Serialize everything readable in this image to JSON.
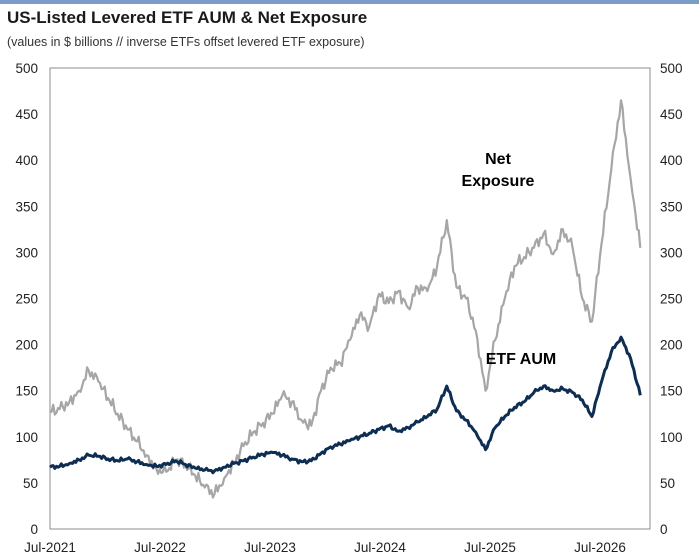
{
  "header": {
    "title": "US-Listed Levered ETF AUM & Net Exposure",
    "subtitle": "(values in $ billions // inverse ETFs offset levered ETF exposure)"
  },
  "chart_data": {
    "type": "line",
    "title": "US-Listed Levered ETF AUM & Net Exposure",
    "subtitle": "(values in $ billions // inverse ETFs offset levered ETF exposure)",
    "xlabel": "",
    "ylabel": "",
    "x_tick_labels": [
      "Jul-2021",
      "Jul-2022",
      "Jul-2023",
      "Jul-2024",
      "Jul-2025",
      "Jul-2026"
    ],
    "y_ticks": [
      0,
      50,
      100,
      150,
      200,
      250,
      300,
      350,
      400,
      450,
      500
    ],
    "ylim": [
      0,
      500
    ],
    "secondary_y_ticks": [
      0,
      50,
      100,
      150,
      200,
      250,
      300,
      350,
      400,
      450,
      500
    ],
    "grid": false,
    "annotations": [
      {
        "text": "Net",
        "series": "Net Exposure",
        "color": "#a6a6a6"
      },
      {
        "text": "Exposure",
        "series": "Net Exposure",
        "color": "#a6a6a6"
      },
      {
        "text": "ETF AUM",
        "series": "ETF AUM",
        "color": "#0e2d52"
      }
    ],
    "series": [
      {
        "name": "Net Exposure",
        "color": "#a6a6a6",
        "points": [
          [
            "2021-07",
            127
          ],
          [
            "2021-08",
            130
          ],
          [
            "2021-09",
            138
          ],
          [
            "2021-10",
            150
          ],
          [
            "2021-11",
            172
          ],
          [
            "2021-12",
            160
          ],
          [
            "2022-01",
            142
          ],
          [
            "2022-02",
            125
          ],
          [
            "2022-03",
            108
          ],
          [
            "2022-04",
            95
          ],
          [
            "2022-05",
            80
          ],
          [
            "2022-06",
            65
          ],
          [
            "2022-07",
            62
          ],
          [
            "2022-08",
            75
          ],
          [
            "2022-09",
            70
          ],
          [
            "2022-10",
            58
          ],
          [
            "2022-11",
            45
          ],
          [
            "2022-12",
            38
          ],
          [
            "2023-01",
            55
          ],
          [
            "2023-02",
            72
          ],
          [
            "2023-03",
            90
          ],
          [
            "2023-04",
            105
          ],
          [
            "2023-05",
            115
          ],
          [
            "2023-06",
            125
          ],
          [
            "2023-07",
            145
          ],
          [
            "2023-08",
            138
          ],
          [
            "2023-09",
            118
          ],
          [
            "2023-10",
            112
          ],
          [
            "2023-11",
            150
          ],
          [
            "2023-12",
            175
          ],
          [
            "2024-01",
            180
          ],
          [
            "2024-02",
            205
          ],
          [
            "2024-03",
            232
          ],
          [
            "2024-04",
            220
          ],
          [
            "2024-05",
            255
          ],
          [
            "2024-06",
            245
          ],
          [
            "2024-07",
            258
          ],
          [
            "2024-08",
            240
          ],
          [
            "2024-09",
            262
          ],
          [
            "2024-10",
            258
          ],
          [
            "2024-11",
            285
          ],
          [
            "2024-12",
            335
          ],
          [
            "2025-01",
            262
          ],
          [
            "2025-02",
            250
          ],
          [
            "2025-03",
            215
          ],
          [
            "2025-04",
            150
          ],
          [
            "2025-05",
            205
          ],
          [
            "2025-06",
            250
          ],
          [
            "2025-07",
            285
          ],
          [
            "2025-08",
            295
          ],
          [
            "2025-09",
            305
          ],
          [
            "2025-10",
            320
          ],
          [
            "2025-11",
            298
          ],
          [
            "2025-12",
            325
          ],
          [
            "2026-01",
            305
          ],
          [
            "2026-02",
            250
          ],
          [
            "2026-03",
            225
          ],
          [
            "2026-04",
            310
          ],
          [
            "2026-05",
            390
          ],
          [
            "2026-06",
            465
          ],
          [
            "2026-07",
            380
          ],
          [
            "2026-08",
            305
          ]
        ]
      },
      {
        "name": "ETF AUM",
        "color": "#0e2d52",
        "points": [
          [
            "2021-07",
            67
          ],
          [
            "2021-08",
            68
          ],
          [
            "2021-09",
            71
          ],
          [
            "2021-10",
            75
          ],
          [
            "2021-11",
            80
          ],
          [
            "2021-12",
            79
          ],
          [
            "2022-01",
            76
          ],
          [
            "2022-02",
            74
          ],
          [
            "2022-03",
            76
          ],
          [
            "2022-04",
            73
          ],
          [
            "2022-05",
            70
          ],
          [
            "2022-06",
            68
          ],
          [
            "2022-07",
            70
          ],
          [
            "2022-08",
            74
          ],
          [
            "2022-09",
            70
          ],
          [
            "2022-10",
            66
          ],
          [
            "2022-11",
            64
          ],
          [
            "2022-12",
            63
          ],
          [
            "2023-01",
            67
          ],
          [
            "2023-02",
            71
          ],
          [
            "2023-03",
            74
          ],
          [
            "2023-04",
            78
          ],
          [
            "2023-05",
            81
          ],
          [
            "2023-06",
            83
          ],
          [
            "2023-07",
            80
          ],
          [
            "2023-08",
            76
          ],
          [
            "2023-09",
            73
          ],
          [
            "2023-10",
            74
          ],
          [
            "2023-11",
            82
          ],
          [
            "2023-12",
            89
          ],
          [
            "2024-01",
            92
          ],
          [
            "2024-02",
            96
          ],
          [
            "2024-03",
            100
          ],
          [
            "2024-04",
            104
          ],
          [
            "2024-05",
            108
          ],
          [
            "2024-06",
            112
          ],
          [
            "2024-07",
            106
          ],
          [
            "2024-08",
            110
          ],
          [
            "2024-09",
            116
          ],
          [
            "2024-10",
            122
          ],
          [
            "2024-11",
            130
          ],
          [
            "2024-12",
            155
          ],
          [
            "2025-01",
            128
          ],
          [
            "2025-02",
            118
          ],
          [
            "2025-03",
            105
          ],
          [
            "2025-04",
            86
          ],
          [
            "2025-05",
            110
          ],
          [
            "2025-06",
            122
          ],
          [
            "2025-07",
            132
          ],
          [
            "2025-08",
            138
          ],
          [
            "2025-09",
            148
          ],
          [
            "2025-10",
            155
          ],
          [
            "2025-11",
            150
          ],
          [
            "2025-12",
            152
          ],
          [
            "2026-01",
            148
          ],
          [
            "2026-02",
            140
          ],
          [
            "2026-03",
            122
          ],
          [
            "2026-04",
            160
          ],
          [
            "2026-05",
            192
          ],
          [
            "2026-06",
            208
          ],
          [
            "2026-07",
            185
          ],
          [
            "2026-08",
            145
          ]
        ]
      }
    ]
  }
}
